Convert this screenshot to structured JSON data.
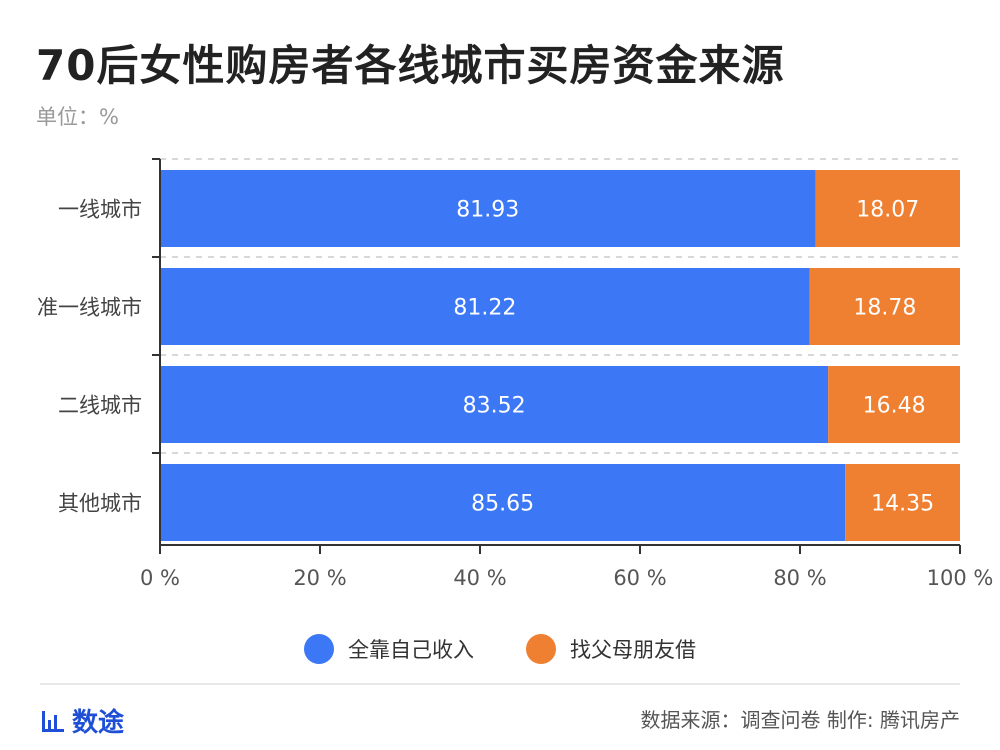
{
  "header": {
    "title": "70后女性购房者各线城市买房资金来源",
    "unit": "单位：%"
  },
  "colors": {
    "series_self": "#3c78f6",
    "series_family": "#ef7f31",
    "brand": "#1e4fd6"
  },
  "chart_data": {
    "type": "bar",
    "orientation": "horizontal",
    "stacked": true,
    "categories": [
      "一线城市",
      "准一线城市",
      "二线城市",
      "其他城市"
    ],
    "series": [
      {
        "name": "全靠自己收入",
        "values": [
          81.93,
          81.22,
          83.52,
          85.65
        ]
      },
      {
        "name": "找父母朋友借",
        "values": [
          18.07,
          18.78,
          16.48,
          14.35
        ]
      }
    ],
    "data_labels": [
      [
        "81.93",
        "81.22",
        "83.52",
        "85.65"
      ],
      [
        "18.07",
        "18.78",
        "16.48",
        "14.35"
      ]
    ],
    "xlim": [
      0,
      100
    ],
    "x_ticks": [
      "0 %",
      "20 %",
      "40 %",
      "60 %",
      "80 %",
      "100 %"
    ],
    "x_tick_values": [
      0,
      20,
      40,
      60,
      80,
      100
    ],
    "grid": "dashed horizontal separators",
    "legend_position": "bottom-center"
  },
  "legend": {
    "items": [
      {
        "label": "全靠自己收入"
      },
      {
        "label": "找父母朋友借"
      }
    ]
  },
  "footer": {
    "brand_label": "数途",
    "brand_icon": "bar-chart-icon",
    "source": "数据来源：调查问卷 制作: 腾讯房产"
  }
}
